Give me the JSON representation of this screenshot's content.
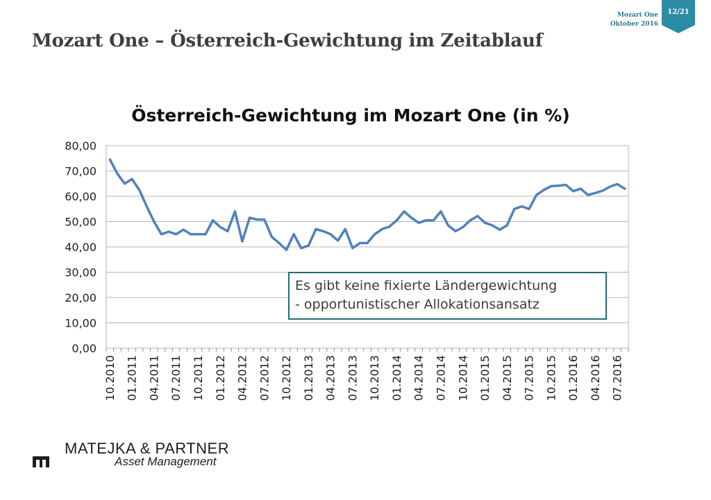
{
  "header": {
    "title": "Mozart One – Österreich-Gewichtung im Zeitablauf",
    "product": "Mozart One",
    "date": "Oktober 2016",
    "page": "12/21"
  },
  "annotation": {
    "line1": "Es gibt keine fixierte Ländergewichtung",
    "line2": "- opportunistischer Allokationsansatz"
  },
  "footer": {
    "company": "MATEJKA & PARTNER",
    "subtitle": "Asset Management"
  },
  "colors": {
    "line": "#4f81bd",
    "accent": "#1f6e72",
    "badge": "#2b8ca3",
    "grid": "#b4b4b4"
  },
  "chart_data": {
    "type": "line",
    "title": "Österreich-Gewichtung im Mozart One (in %)",
    "xlabel": "",
    "ylabel": "",
    "ylim": [
      0,
      80
    ],
    "y_ticks": [
      "0,00",
      "10,00",
      "20,00",
      "30,00",
      "40,00",
      "50,00",
      "60,00",
      "70,00",
      "80,00"
    ],
    "x_tick_labels": [
      "10.2010",
      "01.2011",
      "04.2011",
      "07.2011",
      "10.2011",
      "01.2012",
      "04.2012",
      "07.2012",
      "10.2012",
      "01.2013",
      "04.2013",
      "07.2013",
      "10.2013",
      "01.2014",
      "04.2014",
      "07.2014",
      "10.2014",
      "01.2015",
      "04.2015",
      "07.2015",
      "10.2015",
      "01.2016",
      "04.2016",
      "07.2016"
    ],
    "grid": true,
    "series": [
      {
        "name": "Österreich-Gewichtung",
        "values": [
          74.5,
          69.0,
          65.0,
          66.8,
          62.5,
          56.0,
          50.0,
          45.0,
          46.0,
          45.0,
          46.8,
          45.0,
          45.0,
          45.0,
          50.5,
          47.8,
          46.2,
          54.0,
          42.2,
          51.5,
          50.8,
          50.8,
          44.0,
          41.5,
          38.8,
          45.0,
          39.5,
          40.5,
          47.0,
          46.2,
          45.0,
          42.5,
          47.0,
          39.5,
          41.5,
          41.5,
          45.0,
          47.0,
          48.0,
          50.5,
          54.0,
          51.5,
          49.5,
          50.5,
          50.5,
          54.0,
          48.5,
          46.2,
          47.8,
          50.5,
          52.2,
          49.5,
          48.5,
          46.8,
          48.5,
          55.0,
          56.0,
          55.0,
          60.5,
          62.5,
          64.0,
          64.2,
          64.5,
          62.0,
          63.0,
          60.5,
          61.3,
          62.2,
          63.8,
          64.8,
          63.0
        ]
      }
    ]
  }
}
